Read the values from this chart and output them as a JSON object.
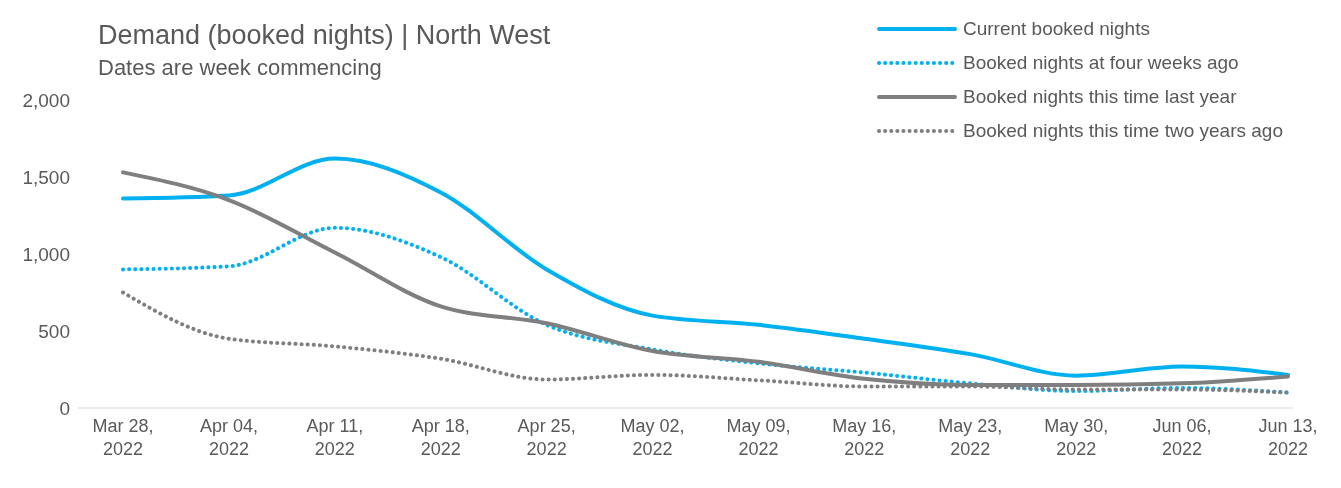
{
  "chart_data": {
    "type": "line",
    "title": "Demand (booked nights) | North West",
    "subtitle": "Dates are week commencing",
    "categories": [
      "Mar 28, 2022",
      "Apr 04, 2022",
      "Apr 11, 2022",
      "Apr 18, 2022",
      "Apr 25, 2022",
      "May 02, 2022",
      "May 09, 2022",
      "May 16, 2022",
      "May 23, 2022",
      "May 30, 2022",
      "Jun 06, 2022",
      "Jun 13, 2022"
    ],
    "series": [
      {
        "name": "Current booked nights",
        "color": "#00b0f0",
        "line_style": "solid",
        "values": [
          1360,
          1380,
          1620,
          1400,
          900,
          600,
          540,
          450,
          350,
          210,
          270,
          215
        ]
      },
      {
        "name": "Booked nights at four weeks ago",
        "color": "#00b0f0",
        "line_style": "dotted",
        "values": [
          900,
          920,
          1170,
          980,
          540,
          380,
          290,
          230,
          160,
          110,
          130,
          100
        ]
      },
      {
        "name": "Booked nights this time last year",
        "color": "#7f7f7f",
        "line_style": "solid",
        "values": [
          1530,
          1350,
          1010,
          660,
          550,
          370,
          300,
          190,
          150,
          150,
          160,
          205
        ]
      },
      {
        "name": "Booked nights this time two years ago",
        "color": "#7f7f7f",
        "line_style": "dotted",
        "values": [
          750,
          450,
          400,
          320,
          185,
          215,
          180,
          140,
          140,
          120,
          120,
          100
        ]
      }
    ],
    "ylim": [
      0,
      2000
    ],
    "yticks": [
      0,
      500,
      {
        "value": 1000,
        "label": "1,000"
      },
      {
        "value": 1500,
        "label": "1,500"
      },
      {
        "value": 2000,
        "label": "2,000"
      }
    ],
    "legend": "top right",
    "marker": "none"
  }
}
